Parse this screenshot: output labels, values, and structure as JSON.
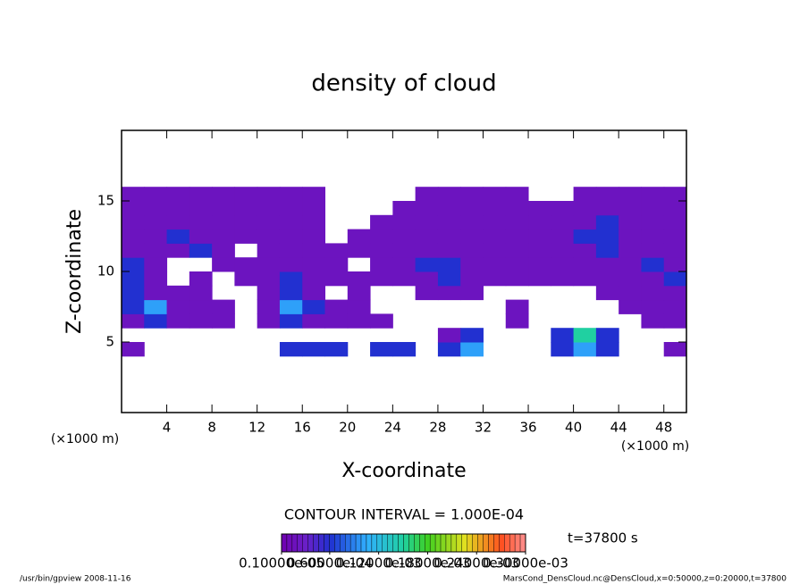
{
  "chart_data": {
    "type": "heatmap",
    "title": "density of cloud",
    "xlabel": "X-coordinate",
    "ylabel": "Z-coordinate",
    "xunit": "(×1000 m)",
    "yunit": "(×1000 m)",
    "xlim": [
      0,
      50
    ],
    "ylim": [
      0,
      20
    ],
    "xticks": [
      4,
      8,
      12,
      16,
      20,
      24,
      28,
      32,
      36,
      40,
      44,
      48
    ],
    "yticks": [
      5,
      10,
      15
    ],
    "x": [
      1,
      3,
      5,
      7,
      9,
      11,
      13,
      15,
      17,
      19,
      21,
      23,
      25,
      27,
      29,
      31,
      33,
      35,
      37,
      39,
      41,
      43,
      45,
      47,
      49
    ],
    "y": [
      4.5,
      5.5,
      6.5,
      7.5,
      8.5,
      9.5,
      10.5,
      11.5,
      12.5,
      13.5,
      14.5,
      15.5
    ],
    "values": [
      [
        2e-05,
        null,
        null,
        null,
        null,
        null,
        null,
        6e-05,
        6e-05,
        6e-05,
        null,
        6e-05,
        6e-05,
        null,
        6e-05,
        0.0001,
        null,
        null,
        null,
        6e-05,
        0.0001,
        6e-05,
        null,
        null,
        2e-05
      ],
      [
        null,
        null,
        null,
        null,
        null,
        null,
        null,
        null,
        null,
        null,
        null,
        null,
        null,
        null,
        2e-05,
        6e-05,
        null,
        null,
        null,
        6e-05,
        0.00015,
        6e-05,
        null,
        null,
        null
      ],
      [
        2e-05,
        6e-05,
        2e-05,
        2e-05,
        2e-05,
        null,
        2e-05,
        6e-05,
        2e-05,
        2e-05,
        2e-05,
        2e-05,
        null,
        null,
        null,
        null,
        null,
        2e-05,
        null,
        null,
        null,
        null,
        null,
        2e-05,
        2e-05
      ],
      [
        6e-05,
        0.0001,
        2e-05,
        2e-05,
        2e-05,
        null,
        2e-05,
        0.0001,
        6e-05,
        2e-05,
        2e-05,
        null,
        null,
        null,
        null,
        null,
        null,
        2e-05,
        null,
        null,
        null,
        null,
        2e-05,
        2e-05,
        2e-05
      ],
      [
        6e-05,
        2e-05,
        2e-05,
        2e-05,
        null,
        null,
        2e-05,
        6e-05,
        2e-05,
        null,
        2e-05,
        null,
        null,
        2e-05,
        2e-05,
        2e-05,
        null,
        null,
        null,
        null,
        null,
        2e-05,
        2e-05,
        2e-05,
        2e-05
      ],
      [
        6e-05,
        2e-05,
        null,
        2e-05,
        null,
        2e-05,
        2e-05,
        6e-05,
        2e-05,
        2e-05,
        2e-05,
        2e-05,
        2e-05,
        2e-05,
        6e-05,
        2e-05,
        2e-05,
        2e-05,
        2e-05,
        2e-05,
        2e-05,
        2e-05,
        2e-05,
        2e-05,
        6e-05
      ],
      [
        6e-05,
        2e-05,
        null,
        null,
        2e-05,
        2e-05,
        2e-05,
        2e-05,
        2e-05,
        2e-05,
        null,
        2e-05,
        2e-05,
        6e-05,
        6e-05,
        2e-05,
        2e-05,
        2e-05,
        2e-05,
        2e-05,
        2e-05,
        2e-05,
        2e-05,
        6e-05,
        2e-05
      ],
      [
        2e-05,
        2e-05,
        2e-05,
        6e-05,
        2e-05,
        null,
        2e-05,
        2e-05,
        2e-05,
        2e-05,
        2e-05,
        2e-05,
        2e-05,
        2e-05,
        2e-05,
        2e-05,
        2e-05,
        2e-05,
        2e-05,
        2e-05,
        2e-05,
        6e-05,
        2e-05,
        2e-05,
        2e-05
      ],
      [
        2e-05,
        2e-05,
        6e-05,
        2e-05,
        2e-05,
        2e-05,
        2e-05,
        2e-05,
        2e-05,
        null,
        2e-05,
        2e-05,
        2e-05,
        2e-05,
        2e-05,
        2e-05,
        2e-05,
        2e-05,
        2e-05,
        2e-05,
        6e-05,
        6e-05,
        2e-05,
        2e-05,
        2e-05
      ],
      [
        2e-05,
        2e-05,
        2e-05,
        2e-05,
        2e-05,
        2e-05,
        2e-05,
        2e-05,
        2e-05,
        null,
        null,
        2e-05,
        2e-05,
        2e-05,
        2e-05,
        2e-05,
        2e-05,
        2e-05,
        2e-05,
        2e-05,
        2e-05,
        6e-05,
        2e-05,
        2e-05,
        2e-05
      ],
      [
        2e-05,
        2e-05,
        2e-05,
        2e-05,
        2e-05,
        2e-05,
        2e-05,
        2e-05,
        2e-05,
        null,
        null,
        null,
        2e-05,
        2e-05,
        2e-05,
        2e-05,
        2e-05,
        2e-05,
        2e-05,
        2e-05,
        2e-05,
        2e-05,
        2e-05,
        2e-05,
        2e-05
      ],
      [
        2e-05,
        2e-05,
        2e-05,
        2e-05,
        2e-05,
        2e-05,
        2e-05,
        2e-05,
        2e-05,
        null,
        null,
        null,
        null,
        2e-05,
        2e-05,
        2e-05,
        2e-05,
        2e-05,
        null,
        null,
        2e-05,
        2e-05,
        2e-05,
        2e-05,
        2e-05
      ]
    ],
    "clim": [
      1e-06,
      0.0003
    ],
    "cticks": [
      {
        "value": 1e-06,
        "label": "0.10000e-05"
      },
      {
        "value": 6e-05,
        "label": "0.60000e-04"
      },
      {
        "value": 0.00012,
        "label": "0.12000e-03"
      },
      {
        "value": 0.00018,
        "label": "0.18000e-03"
      },
      {
        "value": 0.00024,
        "label": "0.24000e-03"
      },
      {
        "value": 0.0003,
        "label": "0.30000e-03"
      }
    ],
    "contour_note": "CONTOUR INTERVAL = 1.000E-04",
    "time_note": "t=37800 s",
    "footer_left": "/usr/bin/gpview  2008-11-16",
    "footer_right": "MarsCond_DensCloud.nc@DensCloud,x=0:50000,z=0:20000,t=37800"
  }
}
